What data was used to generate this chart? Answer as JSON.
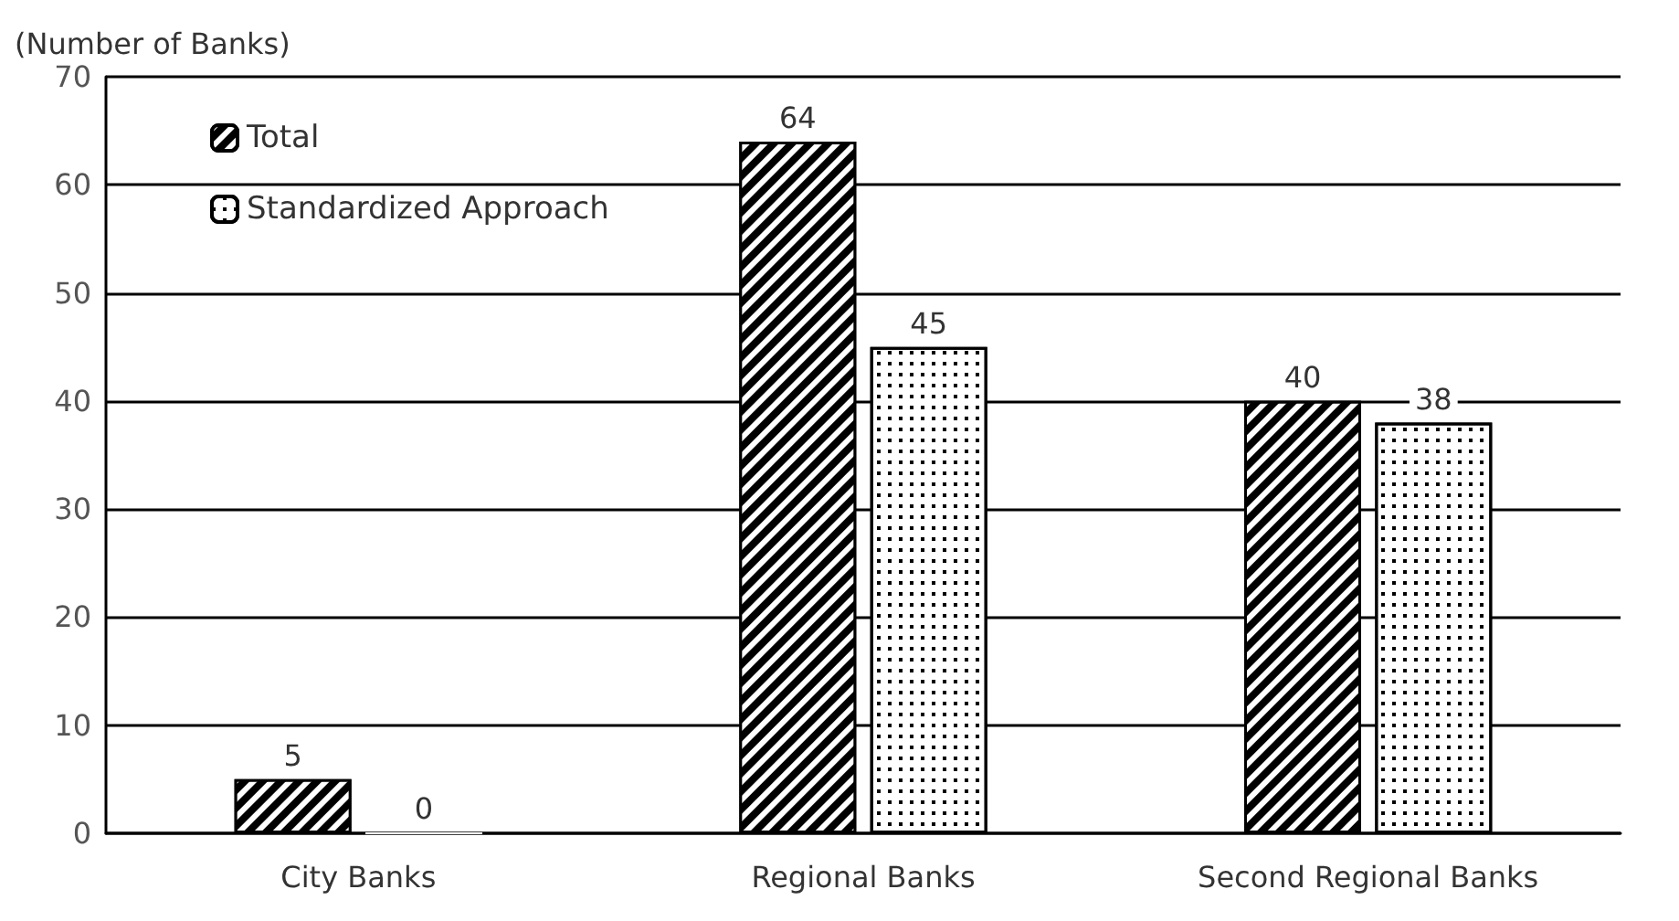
{
  "chart_data": {
    "type": "bar",
    "ylabel": "(Number of Banks)",
    "categories": [
      "City Banks",
      "Regional Banks",
      "Second Regional Banks"
    ],
    "series": [
      {
        "name": "Total",
        "color": "#000000",
        "values": [
          5,
          64,
          40
        ]
      },
      {
        "name": "Standardized Approach",
        "color": "#ffffff",
        "values": [
          0,
          45,
          38
        ]
      }
    ],
    "ylim": [
      0,
      70
    ],
    "yticks": [
      0,
      10,
      20,
      30,
      40,
      50,
      60,
      70
    ],
    "grid": "y",
    "legend": "top left",
    "data_labels": true
  }
}
